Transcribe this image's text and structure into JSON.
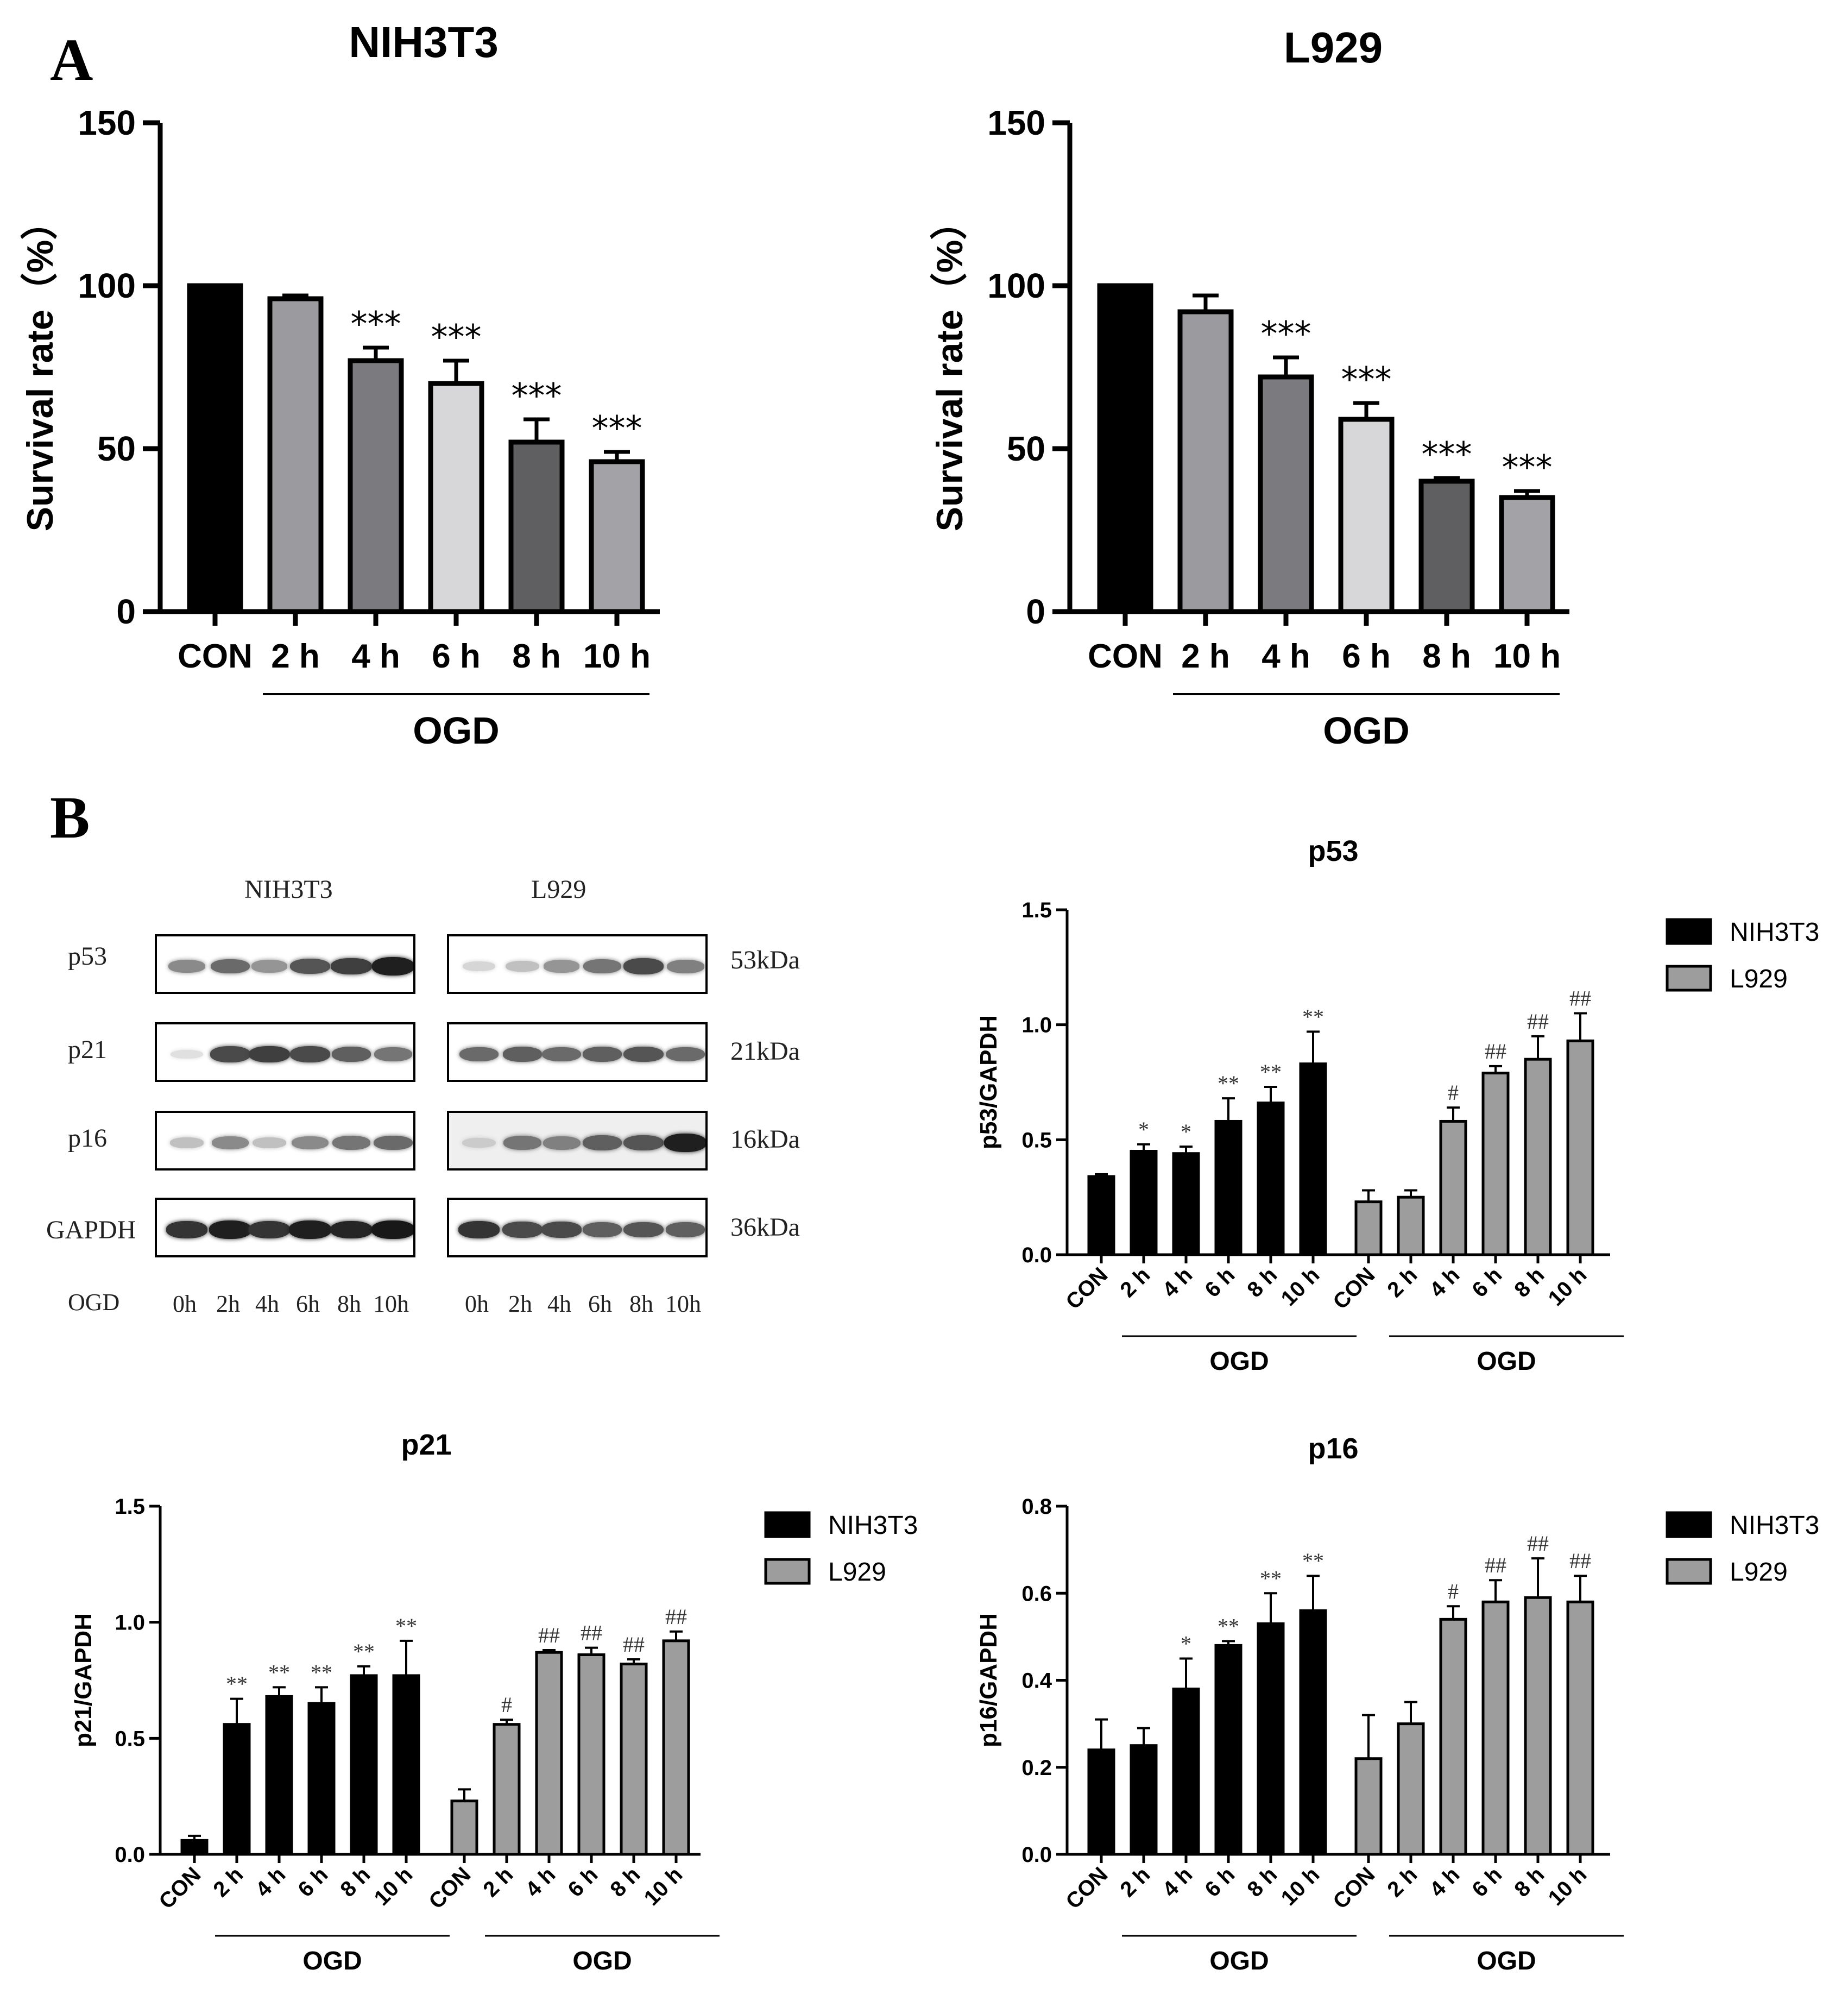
{
  "panels": {
    "a": "A",
    "b": "B"
  },
  "colors": {
    "con": "#000000",
    "g2": "#9b9b9f",
    "g4": "#7b7b7f",
    "g6": "#d7d7da",
    "g8": "#5f5f62",
    "g10": "#a3a3a7",
    "nih": "#000000",
    "l929": "#9d9d9d"
  },
  "chart_data": [
    {
      "id": "survival_nih3t3",
      "type": "bar",
      "title": "NIH3T3",
      "ylabel": "Survival rate（%）",
      "ylim": [
        0,
        150
      ],
      "yticks": [
        "0",
        "50",
        "100",
        "150"
      ],
      "categories": [
        "CON",
        "2 h",
        "4 h",
        "6 h",
        "8 h",
        "10 h"
      ],
      "values": [
        100,
        96,
        77,
        70,
        52,
        46
      ],
      "errors": [
        0,
        1,
        4,
        7,
        7,
        3
      ],
      "annotations": [
        "",
        "",
        "***",
        "***",
        "***",
        "***"
      ],
      "group_label": "OGD"
    },
    {
      "id": "survival_l929",
      "type": "bar",
      "title": "L929",
      "ylabel": "Survival rate（%）",
      "ylim": [
        0,
        150
      ],
      "yticks": [
        "0",
        "50",
        "100",
        "150"
      ],
      "categories": [
        "CON",
        "2 h",
        "4 h",
        "6 h",
        "8 h",
        "10 h"
      ],
      "values": [
        100,
        92,
        72,
        59,
        40,
        35
      ],
      "errors": [
        0,
        5,
        6,
        5,
        1,
        2
      ],
      "annotations": [
        "",
        "",
        "***",
        "***",
        "***",
        "***"
      ],
      "group_label": "OGD"
    },
    {
      "id": "p53",
      "type": "bar",
      "title": "p53",
      "ylabel": "p53/GAPDH",
      "ylim": [
        0,
        1.5
      ],
      "yticks": [
        "0.0",
        "0.5",
        "1.0",
        "1.5"
      ],
      "categories": [
        "CON",
        "2 h",
        "4 h",
        "6 h",
        "8 h",
        "10 h"
      ],
      "group_label": "OGD",
      "legend": [
        "NIH3T3",
        "L929"
      ],
      "series": [
        {
          "name": "NIH3T3",
          "values": [
            0.34,
            0.45,
            0.44,
            0.58,
            0.66,
            0.83
          ],
          "errors": [
            0.01,
            0.03,
            0.03,
            0.1,
            0.07,
            0.14
          ],
          "annotations": [
            "",
            "*",
            "*",
            "**",
            "**",
            "**"
          ]
        },
        {
          "name": "L929",
          "values": [
            0.23,
            0.25,
            0.58,
            0.79,
            0.85,
            0.93
          ],
          "errors": [
            0.05,
            0.03,
            0.06,
            0.03,
            0.1,
            0.12
          ],
          "annotations": [
            "",
            "",
            "#",
            "##",
            "##",
            "##"
          ]
        }
      ]
    },
    {
      "id": "p21",
      "type": "bar",
      "title": "p21",
      "ylabel": "p21/GAPDH",
      "ylim": [
        0,
        1.5
      ],
      "yticks": [
        "0.0",
        "0.5",
        "1.0",
        "1.5"
      ],
      "categories": [
        "CON",
        "2 h",
        "4 h",
        "6 h",
        "8 h",
        "10 h"
      ],
      "group_label": "OGD",
      "legend": [
        "NIH3T3",
        "L929"
      ],
      "series": [
        {
          "name": "NIH3T3",
          "values": [
            0.06,
            0.56,
            0.68,
            0.65,
            0.77,
            0.77
          ],
          "errors": [
            0.02,
            0.11,
            0.04,
            0.07,
            0.04,
            0.15
          ],
          "annotations": [
            "",
            "**",
            "**",
            "**",
            "**",
            "**"
          ]
        },
        {
          "name": "L929",
          "values": [
            0.23,
            0.56,
            0.87,
            0.86,
            0.82,
            0.92
          ],
          "errors": [
            0.05,
            0.02,
            0.01,
            0.03,
            0.02,
            0.04
          ],
          "annotations": [
            "",
            "#",
            "##",
            "##",
            "##",
            "##"
          ]
        }
      ]
    },
    {
      "id": "p16",
      "type": "bar",
      "title": "p16",
      "ylabel": "p16/GAPDH",
      "ylim": [
        0,
        0.8
      ],
      "yticks": [
        "0.0",
        "0.2",
        "0.4",
        "0.6",
        "0.8"
      ],
      "categories": [
        "CON",
        "2 h",
        "4 h",
        "6 h",
        "8 h",
        "10 h"
      ],
      "group_label": "OGD",
      "legend": [
        "NIH3T3",
        "L929"
      ],
      "series": [
        {
          "name": "NIH3T3",
          "values": [
            0.24,
            0.25,
            0.38,
            0.48,
            0.53,
            0.56
          ],
          "errors": [
            0.07,
            0.04,
            0.07,
            0.01,
            0.07,
            0.08
          ],
          "annotations": [
            "",
            "",
            "*",
            "**",
            "**",
            "**"
          ]
        },
        {
          "name": "L929",
          "values": [
            0.22,
            0.3,
            0.54,
            0.58,
            0.59,
            0.58
          ],
          "errors": [
            0.1,
            0.05,
            0.03,
            0.05,
            0.09,
            0.06
          ],
          "annotations": [
            "",
            "",
            "#",
            "##",
            "##",
            "##"
          ]
        }
      ]
    }
  ],
  "western_blot": {
    "cell_lines": [
      "NIH3T3",
      "L929"
    ],
    "proteins": [
      {
        "name": "p53",
        "size": "53kDa"
      },
      {
        "name": "p21",
        "size": "21kDa"
      },
      {
        "name": "p16",
        "size": "16kDa"
      },
      {
        "name": "GAPDH",
        "size": "36kDa"
      }
    ],
    "ogd_label": "OGD",
    "lanes": [
      "0h",
      "2h",
      "4h",
      "6h",
      "8h",
      "10h"
    ],
    "intensities": {
      "NIH3T3": [
        [
          0.45,
          0.6,
          0.4,
          0.7,
          0.8,
          0.95
        ],
        [
          0.05,
          0.75,
          0.8,
          0.75,
          0.65,
          0.55
        ],
        [
          0.2,
          0.45,
          0.2,
          0.45,
          0.55,
          0.6
        ],
        [
          0.85,
          0.95,
          0.85,
          0.95,
          0.92,
          0.98
        ]
      ],
      "L929": [
        [
          0.1,
          0.2,
          0.4,
          0.55,
          0.75,
          0.5
        ],
        [
          0.6,
          0.65,
          0.6,
          0.65,
          0.7,
          0.6
        ],
        [
          0.15,
          0.55,
          0.5,
          0.65,
          0.7,
          0.95
        ],
        [
          0.85,
          0.75,
          0.75,
          0.65,
          0.7,
          0.65
        ]
      ]
    }
  }
}
